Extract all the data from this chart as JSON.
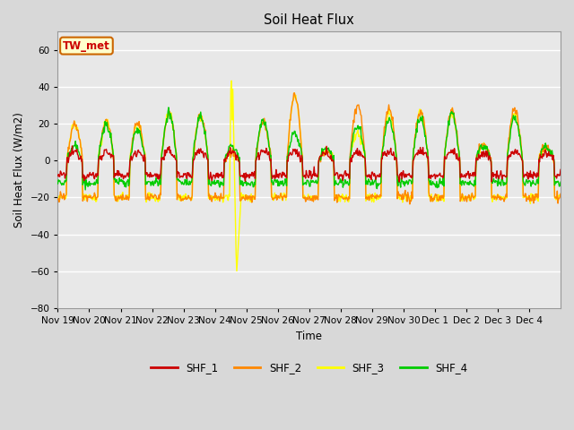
{
  "title": "Soil Heat Flux",
  "xlabel": "Time",
  "ylabel": "Soil Heat Flux (W/m2)",
  "ylim": [
    -80,
    70
  ],
  "yticks": [
    -80,
    -60,
    -40,
    -20,
    0,
    20,
    40,
    60
  ],
  "fig_bg_color": "#d8d8d8",
  "plot_bg_color": "#e8e8e8",
  "grid_color": "white",
  "annotation_text": "TW_met",
  "annotation_color": "#cc0000",
  "annotation_bg": "#ffffcc",
  "annotation_border": "#cc6600",
  "series_colors": {
    "SHF_1": "#cc0000",
    "SHF_2": "#ff8800",
    "SHF_3": "#ffff00",
    "SHF_4": "#00cc00"
  },
  "xtick_labels": [
    "Nov 19",
    "Nov 20",
    "Nov 21",
    "Nov 22",
    "Nov 23",
    "Nov 24",
    "Nov 25",
    "Nov 26",
    "Nov 27",
    "Nov 28",
    "Nov 29",
    "Nov 30",
    "Dec 1",
    "Dec 2",
    "Dec 3",
    "Dec 4"
  ],
  "n_days": 16
}
